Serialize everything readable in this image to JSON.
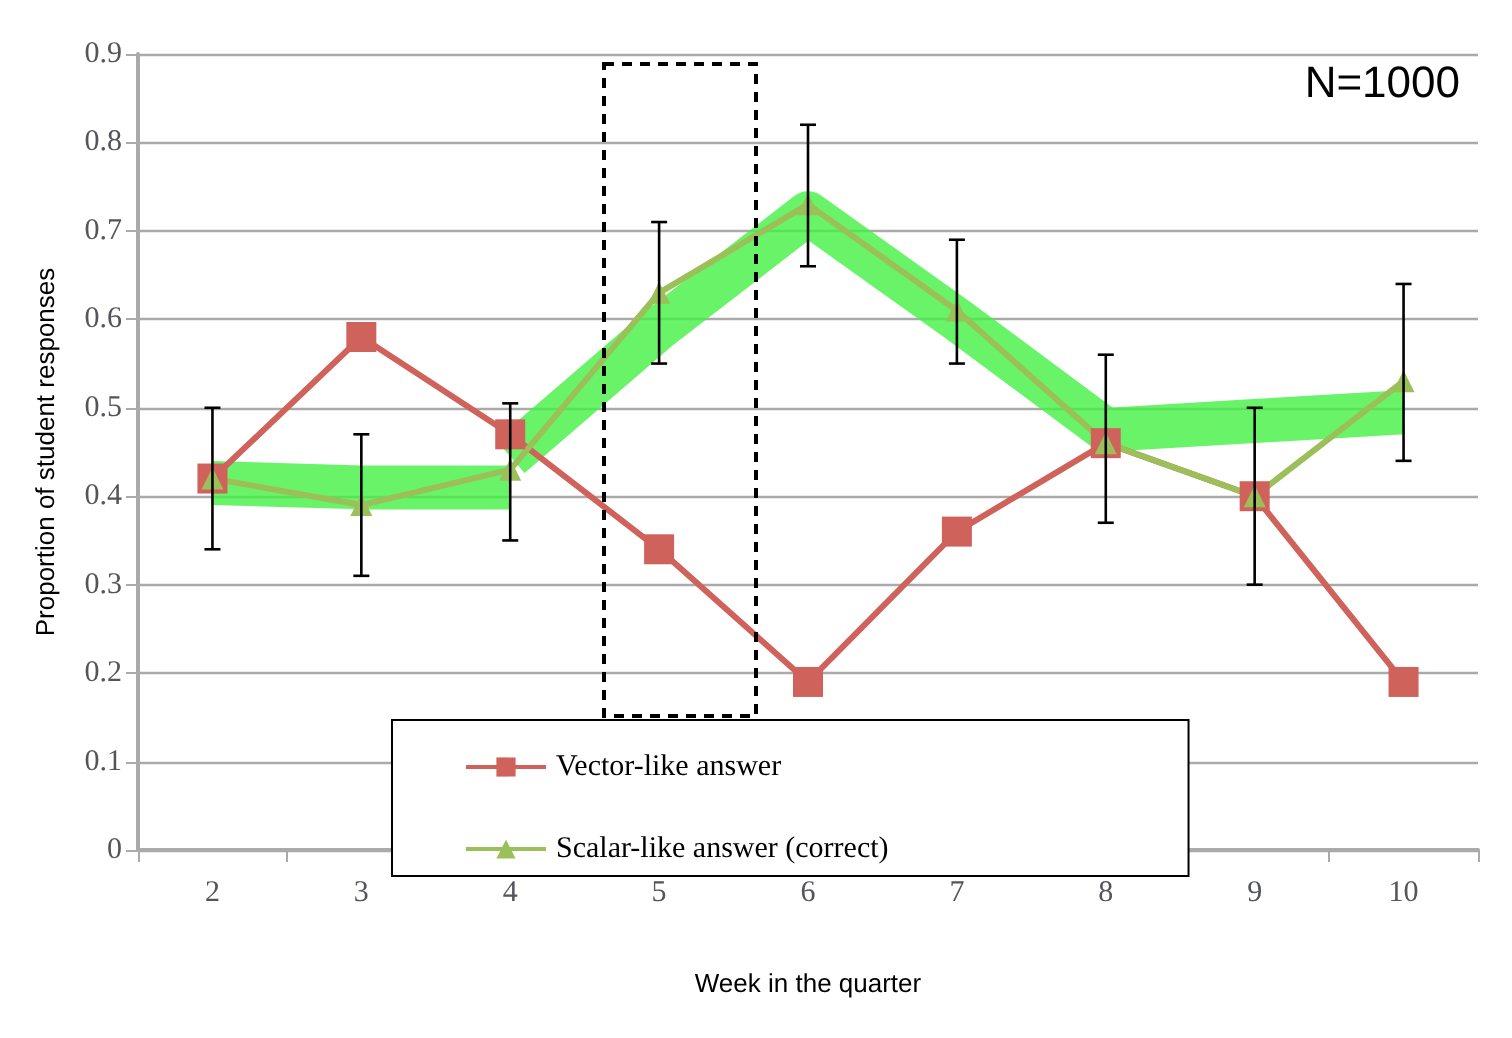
{
  "chart_data": {
    "type": "line",
    "xlabel": "Week in the quarter",
    "ylabel": "Proportion of student responses",
    "categories": [
      "2",
      "3",
      "4",
      "5",
      "6",
      "7",
      "8",
      "9",
      "10"
    ],
    "series": [
      {
        "type": "line",
        "color": "#44f044",
        "marker": "none",
        "values": [
          0.415,
          0.41,
          0.41,
          null,
          null,
          null,
          null,
          null,
          null
        ]
      },
      {
        "type": "line",
        "color": "#44f044",
        "marker": "none",
        "values": [
          null,
          null,
          0.445,
          0.59,
          0.72,
          0.6,
          0.475,
          0.485,
          0.495
        ]
      },
      {
        "name": "Vector-like answer",
        "color": "#d0625c",
        "marker": "square",
        "values": [
          0.42,
          0.58,
          0.47,
          0.34,
          0.19,
          0.36,
          0.46,
          0.4,
          0.19
        ]
      },
      {
        "name": "Scalar-like answer (correct)",
        "color": "#9bc05a",
        "marker": "triangle",
        "values": [
          0.42,
          0.39,
          0.43,
          0.63,
          0.73,
          0.61,
          0.46,
          0.4,
          0.53
        ],
        "errors": [
          [
            0.34,
            0.5
          ],
          [
            0.31,
            0.47
          ],
          [
            0.35,
            0.505
          ],
          [
            0.55,
            0.71
          ],
          [
            0.66,
            0.82
          ],
          [
            0.55,
            0.69
          ],
          [
            0.37,
            0.56
          ],
          [
            0.3,
            0.5
          ],
          [
            0.44,
            0.64
          ]
        ]
      }
    ],
    "ylim": [
      0,
      0.9
    ],
    "yticks": [
      0,
      0.1,
      0.2,
      0.3,
      0.4,
      0.5,
      0.6,
      0.7,
      0.8,
      0.9
    ],
    "grid": "y",
    "legend": "bottom left",
    "line_style": "solid",
    "annotations": [
      "N=1000"
    ]
  }
}
